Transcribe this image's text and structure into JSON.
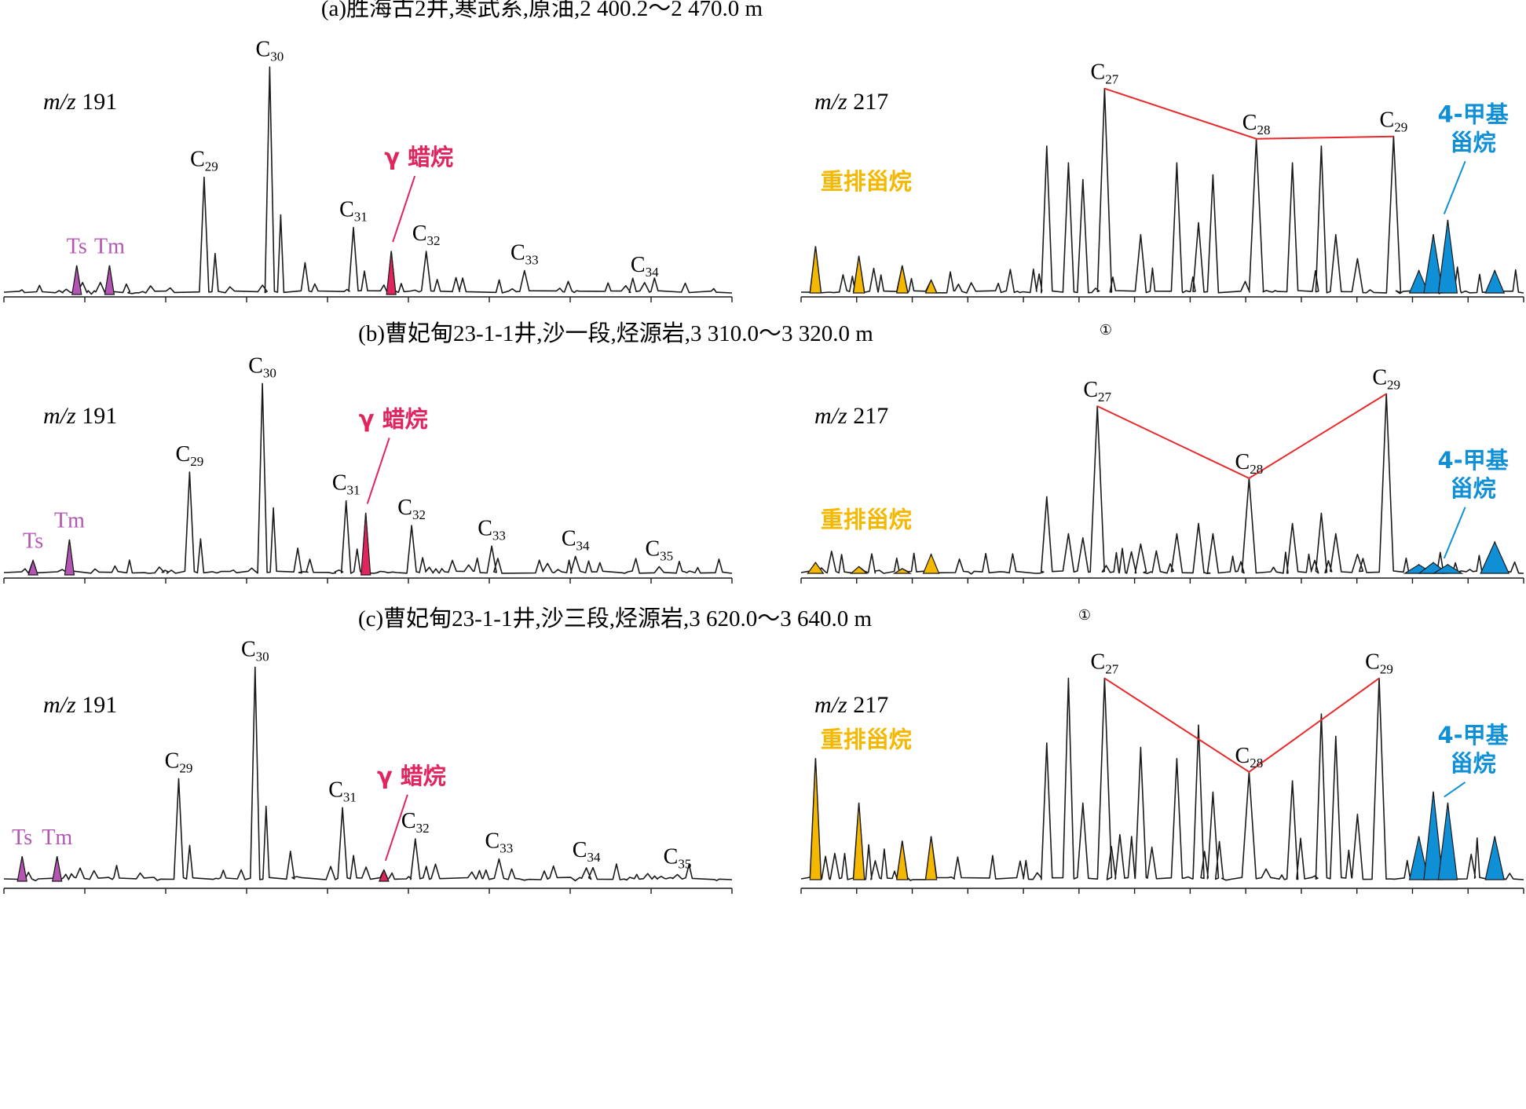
{
  "colors": {
    "trace": "#1a1a1a",
    "ts_tm": "#b455b4",
    "gammacerane": "#e0245e",
    "c27_c29_link": "#e8282b",
    "diasteranes": "#f5b800",
    "methyl_steranes": "#0f8fd6"
  },
  "chart_data": [
    {
      "type": "line",
      "panel": "a",
      "title": "(a)胜海古2井,寒武系,原油,2 400.2～2 470.0 m",
      "note_mark": "",
      "left": {
        "ion": "m/z 191",
        "ion_prefix": "m/z",
        "ion_value": "191",
        "peaks": [
          {
            "label": "Ts",
            "pos": 0.1,
            "height": 0.12,
            "fill": "ts_tm"
          },
          {
            "label": "Tm",
            "pos": 0.145,
            "height": 0.12,
            "fill": "ts_tm"
          },
          {
            "label": "C",
            "sub": "29",
            "pos": 0.275,
            "height": 0.49
          },
          {
            "label": "C",
            "sub": "30",
            "pos": 0.365,
            "height": 0.95
          },
          {
            "label": "C",
            "sub": "31",
            "pos": 0.48,
            "height": 0.28
          },
          {
            "label": "γ 蜡烷",
            "pos": 0.532,
            "height": 0.18,
            "fill": "gammacerane",
            "leader": true
          },
          {
            "label": "C",
            "sub": "32",
            "pos": 0.58,
            "height": 0.18
          },
          {
            "label": "C",
            "sub": "33",
            "pos": 0.715,
            "height": 0.1
          },
          {
            "label": "C",
            "sub": "34",
            "pos": 0.88,
            "height": 0.05
          }
        ]
      },
      "right": {
        "ion": "m/z 217",
        "ion_prefix": "m/z",
        "ion_value": "217",
        "diasterane_label": "重排甾烷",
        "methyl_label_1": "4-甲基",
        "methyl_label_2": "甾烷",
        "peaks": [
          {
            "label": "C",
            "sub": "27",
            "pos": 0.42,
            "height": 0.86
          },
          {
            "label": "C",
            "sub": "28",
            "pos": 0.63,
            "height": 0.65
          },
          {
            "label": "C",
            "sub": "29",
            "pos": 0.82,
            "height": 0.66
          }
        ]
      }
    },
    {
      "type": "line",
      "panel": "b",
      "title": "(b)曹妃甸23-1-1井,沙一段,烃源岩,3 310.0～3 320.0 m",
      "note_mark": "①",
      "left": {
        "ion": "m/z 191",
        "ion_prefix": "m/z",
        "ion_value": "191",
        "peaks": [
          {
            "label": "Ts",
            "pos": 0.04,
            "height": 0.07,
            "fill": "ts_tm"
          },
          {
            "label": "Tm",
            "pos": 0.09,
            "height": 0.17,
            "fill": "ts_tm"
          },
          {
            "label": "C",
            "sub": "29",
            "pos": 0.255,
            "height": 0.5
          },
          {
            "label": "C",
            "sub": "30",
            "pos": 0.355,
            "height": 0.93
          },
          {
            "label": "C",
            "sub": "31",
            "pos": 0.47,
            "height": 0.36
          },
          {
            "label": "γ 蜡烷",
            "pos": 0.497,
            "height": 0.3,
            "fill": "gammacerane",
            "leader": true
          },
          {
            "label": "C",
            "sub": "32",
            "pos": 0.56,
            "height": 0.24
          },
          {
            "label": "C",
            "sub": "33",
            "pos": 0.67,
            "height": 0.14
          },
          {
            "label": "C",
            "sub": "34",
            "pos": 0.785,
            "height": 0.09
          },
          {
            "label": "C",
            "sub": "35",
            "pos": 0.9,
            "height": 0.04
          }
        ]
      },
      "right": {
        "ion": "m/z 217",
        "ion_prefix": "m/z",
        "ion_value": "217",
        "diasterane_label": "重排甾烷",
        "methyl_label_1": "4-甲基",
        "methyl_label_2": "甾烷",
        "peaks": [
          {
            "label": "C",
            "sub": "27",
            "pos": 0.41,
            "height": 0.82
          },
          {
            "label": "C",
            "sub": "28",
            "pos": 0.62,
            "height": 0.47
          },
          {
            "label": "C",
            "sub": "29",
            "pos": 0.81,
            "height": 0.88
          }
        ]
      }
    },
    {
      "type": "line",
      "panel": "c",
      "title": "(c)曹妃甸23-1-1井,沙三段,烃源岩,3 620.0～3 640.0 m",
      "note_mark": "①",
      "left": {
        "ion": "m/z 191",
        "ion_prefix": "m/z",
        "ion_value": "191",
        "peaks": [
          {
            "label": "Ts",
            "pos": 0.025,
            "height": 0.11,
            "fill": "ts_tm"
          },
          {
            "label": "Tm",
            "pos": 0.073,
            "height": 0.11,
            "fill": "ts_tm"
          },
          {
            "label": "C",
            "sub": "29",
            "pos": 0.24,
            "height": 0.46
          },
          {
            "label": "C",
            "sub": "30",
            "pos": 0.345,
            "height": 0.96
          },
          {
            "label": "C",
            "sub": "31",
            "pos": 0.465,
            "height": 0.33
          },
          {
            "label": "γ 蜡烷",
            "pos": 0.522,
            "height": 0.05,
            "fill": "gammacerane",
            "leader": true
          },
          {
            "label": "C",
            "sub": "32",
            "pos": 0.565,
            "height": 0.19
          },
          {
            "label": "C",
            "sub": "33",
            "pos": 0.68,
            "height": 0.1
          },
          {
            "label": "C",
            "sub": "34",
            "pos": 0.8,
            "height": 0.06
          },
          {
            "label": "C",
            "sub": "35",
            "pos": 0.925,
            "height": 0.03
          }
        ]
      },
      "right": {
        "ion": "m/z 217",
        "ion_prefix": "m/z",
        "ion_value": "217",
        "diasterane_label": "重排甾烷",
        "methyl_label_1": "4-甲基",
        "methyl_label_2": "甾烷",
        "peaks": [
          {
            "label": "C",
            "sub": "27",
            "pos": 0.42,
            "height": 0.91
          },
          {
            "label": "C",
            "sub": "28",
            "pos": 0.62,
            "height": 0.49
          },
          {
            "label": "C",
            "sub": "29",
            "pos": 0.8,
            "height": 0.91
          }
        ]
      }
    }
  ]
}
